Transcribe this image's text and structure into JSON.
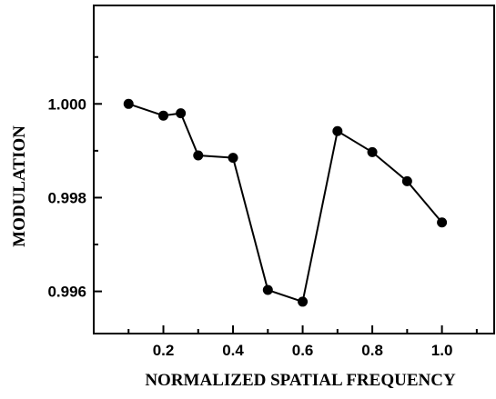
{
  "chart_data": {
    "type": "line",
    "title": "",
    "xlabel": "NORMALIZED SPATIAL FREQUENCY",
    "ylabel": "MODULATION",
    "xlim": [
      0.0,
      1.15
    ],
    "ylim": [
      0.9951,
      1.0021
    ],
    "xticks": [
      "0.2",
      "0.4",
      "0.6",
      "0.8",
      "1.0"
    ],
    "xtick_values": [
      0.2,
      0.4,
      0.6,
      0.8,
      1.0
    ],
    "yticks": [
      "0.996",
      "0.998",
      "1.000"
    ],
    "ytick_values": [
      0.996,
      0.998,
      1.0
    ],
    "grid": false,
    "series": [
      {
        "color": "#000000",
        "marker": "circle",
        "x": [
          0.1,
          0.2,
          0.25,
          0.3,
          0.4,
          0.5,
          0.6,
          0.7,
          0.8,
          0.9,
          1.0
        ],
        "y": [
          1.0,
          0.99975,
          0.9998,
          0.9989,
          0.99885,
          0.99603,
          0.99578,
          0.99942,
          0.99897,
          0.99835,
          0.99747
        ]
      }
    ]
  }
}
